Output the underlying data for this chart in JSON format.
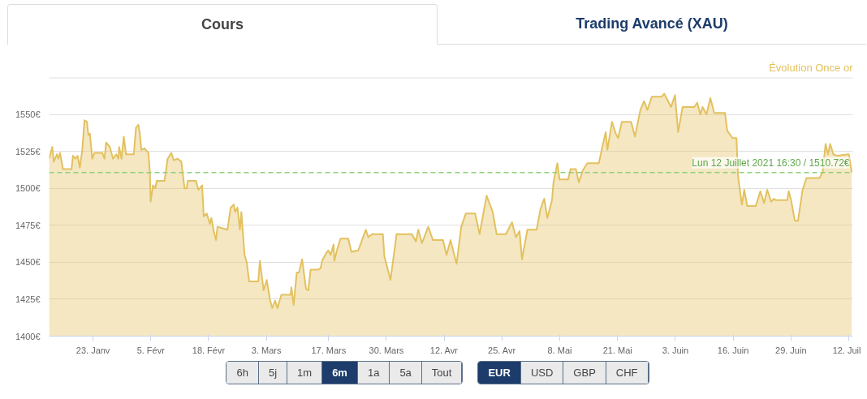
{
  "chart_data": {
    "type": "area",
    "title": "Évolution Once or",
    "annotations": [
      "Cours",
      "Trading Avancé (XAU)",
      "6h",
      "5j",
      "1m",
      "6m",
      "1a",
      "5a",
      "Tout",
      "EUR",
      "USD",
      "GBP",
      "CHF"
    ],
    "xlim": [
      "2021-01-13T03:00",
      "2021-07-12T22:00"
    ],
    "xticks": [
      {
        "value": "2021-01-23",
        "label": "23. Janv"
      },
      {
        "value": "2021-02-05",
        "label": "5. Févr"
      },
      {
        "value": "2021-02-18",
        "label": "18. Févr"
      },
      {
        "value": "2021-03-03",
        "label": "3. Mars"
      },
      {
        "value": "2021-03-17",
        "label": "17. Mars"
      },
      {
        "value": "2021-03-30",
        "label": "30. Mars"
      },
      {
        "value": "2021-04-12",
        "label": "12. Avr"
      },
      {
        "value": "2021-04-25",
        "label": "25. Avr"
      },
      {
        "value": "2021-05-08",
        "label": "8. Mai"
      },
      {
        "value": "2021-05-21",
        "label": "21. Mai"
      },
      {
        "value": "2021-06-03",
        "label": "3. Juin"
      },
      {
        "value": "2021-06-16",
        "label": "16. Juin"
      },
      {
        "value": "2021-06-29",
        "label": "29. Juin"
      },
      {
        "value": "2021-07-12",
        "label": "12. Juil"
      }
    ],
    "ylim": [
      1400,
      1575
    ],
    "yticks": [
      {
        "value": 1400,
        "label": "1400€"
      },
      {
        "value": 1425,
        "label": "1425€"
      },
      {
        "value": 1450,
        "label": "1450€"
      },
      {
        "value": 1475,
        "label": "1475€"
      },
      {
        "value": 1500,
        "label": "1500€"
      },
      {
        "value": 1525,
        "label": "1525€"
      },
      {
        "value": 1550,
        "label": "1550€"
      },
      {
        "value": 1575,
        "label": null
      }
    ],
    "grid": "y",
    "ref_lines": [
      {
        "axis": "y",
        "value": 1510.72,
        "label": "Lun 12 Juillet 2021 16:30 / 1510.72€",
        "color": "#8fd07a",
        "line_style": "dashed"
      }
    ],
    "series": [
      {
        "color": "#e3c15f",
        "x": [
          "2021-01-13T03:00",
          "2021-01-13T20:00",
          "2021-01-14T04:00",
          "2021-01-14T21:00",
          "2021-01-15T05:00",
          "2021-01-15T14:00",
          "2021-01-16T06:00",
          "2021-01-18T04:00",
          "2021-01-18T12:00",
          "2021-01-19T01:00",
          "2021-01-19T13:00",
          "2021-01-20T01:00",
          "2021-01-20T14:00",
          "2021-01-21T02:00",
          "2021-01-21T15:00",
          "2021-01-21T23:00",
          "2021-01-22T07:00",
          "2021-01-22T20:00",
          "2021-01-23T08:00",
          "2021-01-25T02:00",
          "2021-01-25T14:00",
          "2021-01-25T23:00",
          "2021-01-26T19:00",
          "2021-01-27T12:00",
          "2021-01-28T05:00",
          "2021-01-28T17:00",
          "2021-01-28T21:00",
          "2021-01-29T10:00",
          "2021-01-29T22:00",
          "2021-01-30T10:00",
          "2021-02-01T04:00",
          "2021-02-01T16:00",
          "2021-02-02T05:00",
          "2021-02-02T13:00",
          "2021-02-02T21:00",
          "2021-02-03T14:00",
          "2021-02-04T11:00",
          "2021-02-04T19:00",
          "2021-02-04T23:00",
          "2021-02-05T12:00",
          "2021-02-06T00:00",
          "2021-02-06T08:00",
          "2021-02-08T02:00",
          "2021-02-08T19:00",
          "2021-02-09T15:00",
          "2021-02-10T04:00",
          "2021-02-11T01:00",
          "2021-02-11T21:00",
          "2021-02-12T14:00",
          "2021-02-13T02:00",
          "2021-02-13T07:00",
          "2021-02-15T04:00",
          "2021-02-15T17:00",
          "2021-02-16T13:00",
          "2021-02-16T22:00",
          "2021-02-17T14:00",
          "2021-02-18T07:00",
          "2021-02-18T15:00",
          "2021-02-19T04:00",
          "2021-02-19T16:00",
          "2021-02-20T00:00",
          "2021-02-22T06:00",
          "2021-02-22T23:00",
          "2021-02-23T16:00",
          "2021-02-23T23:00",
          "2021-02-24T12:00",
          "2021-02-25T01:00",
          "2021-02-25T09:00",
          "2021-02-26T02:00",
          "2021-02-26T14:00",
          "2021-02-27T03:00",
          "2021-03-01T04:00",
          "2021-03-01T13:00",
          "2021-03-02T09:00",
          "2021-03-03T02:00",
          "2021-03-03T19:00",
          "2021-03-04T07:00",
          "2021-03-04T23:00",
          "2021-03-05T12:00",
          "2021-03-06T09:00",
          "2021-03-08T11:00",
          "2021-03-08T15:00",
          "2021-03-09T03:00",
          "2021-03-09T20:00",
          "2021-03-10T08:00",
          "2021-03-11T01:00",
          "2021-03-11T22:00",
          "2021-03-12T10:00",
          "2021-03-12T23:00",
          "2021-03-14T16:00",
          "2021-03-15T05:00",
          "2021-03-15T13:00",
          "2021-03-16T10:00",
          "2021-03-16T22:00",
          "2021-03-17T11:00",
          "2021-03-18T03:00",
          "2021-03-18T07:00",
          "2021-03-18T23:00",
          "2021-03-19T16:00",
          "2021-03-21T10:00",
          "2021-03-22T03:00",
          "2021-03-23T16:00",
          "2021-03-24T21:00",
          "2021-03-25T09:00",
          "2021-03-25T22:00",
          "2021-03-26T19:00",
          "2021-03-29T05:00",
          "2021-03-29T13:00",
          "2021-03-30T06:00",
          "2021-03-30T22:00",
          "2021-04-01T07:00",
          "2021-04-04T18:00",
          "2021-04-05T15:00",
          "2021-04-06T04:00",
          "2021-04-07T00:00",
          "2021-04-08T10:00",
          "2021-04-09T11:00",
          "2021-04-11T17:00",
          "2021-04-12T13:00",
          "2021-04-13T10:00",
          "2021-04-14T19:00",
          "2021-04-15T20:00",
          "2021-04-16T21:00",
          "2021-04-18T23:00",
          "2021-04-19T23:00",
          "2021-04-21T13:00",
          "2021-04-22T22:00",
          "2021-04-23T19:00",
          "2021-04-25T21:00",
          "2021-04-27T06:00",
          "2021-04-28T03:00",
          "2021-04-28T23:00",
          "2021-04-29T12:00",
          "2021-04-30T17:00",
          "2021-05-02T19:00",
          "2021-05-03T16:00",
          "2021-05-04T12:00",
          "2021-05-05T05:00",
          "2021-05-06T06:00",
          "2021-05-06T14:00",
          "2021-05-07T11:00",
          "2021-05-07T23:00",
          "2021-05-09T21:00",
          "2021-05-10T10:00",
          "2021-05-11T15:00",
          "2021-05-12T07:00",
          "2021-05-13T04:00",
          "2021-05-14T05:00",
          "2021-05-16T19:00",
          "2021-05-17T12:00",
          "2021-05-18T08:00",
          "2021-05-18T17:00",
          "2021-05-19T18:00",
          "2021-05-20T14:00",
          "2021-05-21T03:00",
          "2021-05-21T23:00",
          "2021-05-24T01:00",
          "2021-05-24T22:00",
          "2021-05-26T03:00",
          "2021-05-26T23:00",
          "2021-05-27T17:00",
          "2021-05-28T17:00",
          "2021-05-30T23:00",
          "2021-05-31T12:00",
          "2021-06-01T09:00",
          "2021-06-02T01:00",
          "2021-06-02T22:00",
          "2021-06-03T15:00",
          "2021-06-04T15:00",
          "2021-06-07T06:00",
          "2021-06-07T22:00",
          "2021-06-08T15:00",
          "2021-06-09T03:00",
          "2021-06-10T00:00",
          "2021-06-10T21:00",
          "2021-06-11T18:00",
          "2021-06-14T04:00",
          "2021-06-14T16:00",
          "2021-06-15T21:00",
          "2021-06-16T18:00",
          "2021-06-17T02:00",
          "2021-06-17T23:00",
          "2021-06-18T12:00",
          "2021-06-19T04:00",
          "2021-06-21T02:00",
          "2021-06-22T03:00",
          "2021-06-22T23:00",
          "2021-06-23T16:00",
          "2021-06-24T13:00",
          "2021-06-25T05:00",
          "2021-06-25T14:00",
          "2021-06-28T04:00",
          "2021-06-28T12:00",
          "2021-06-29T01:00",
          "2021-06-29T21:00",
          "2021-06-30T14:00",
          "2021-07-01T15:00",
          "2021-07-02T12:00",
          "2021-07-05T10:00",
          "2021-07-06T03:00",
          "2021-07-06T19:00",
          "2021-07-07T08:00",
          "2021-07-07T20:00",
          "2021-07-08T13:00",
          "2021-07-09T10:00",
          "2021-07-12T00:00",
          "2021-07-12T16:30"
        ],
        "values": [
          1520,
          1528,
          1518,
          1523,
          1520,
          1524,
          1513,
          1513,
          1522,
          1520,
          1522,
          1514,
          1526,
          1546,
          1545,
          1536,
          1537,
          1520,
          1524,
          1524,
          1520,
          1531,
          1528,
          1520,
          1523,
          1520,
          1528,
          1520,
          1535,
          1523,
          1523,
          1541,
          1543,
          1537,
          1526,
          1527,
          1524,
          1511,
          1491,
          1502,
          1500,
          1505,
          1505,
          1520,
          1524,
          1519,
          1520,
          1518,
          1500,
          1500,
          1505,
          1505,
          1499,
          1502,
          1481,
          1483,
          1476,
          1480,
          1471,
          1465,
          1474,
          1472,
          1487,
          1489,
          1484,
          1487,
          1472,
          1484,
          1455,
          1450,
          1437,
          1437,
          1451,
          1431,
          1438,
          1425,
          1419,
          1424,
          1419,
          1428,
          1428,
          1433,
          1421,
          1443,
          1443,
          1452,
          1432,
          1431,
          1445,
          1445,
          1446,
          1451,
          1456,
          1458,
          1455,
          1462,
          1451,
          1459,
          1466,
          1466,
          1457,
          1458,
          1468,
          1472,
          1467,
          1469,
          1469,
          1454,
          1446,
          1438,
          1469,
          1469,
          1464,
          1472,
          1463,
          1474,
          1465,
          1465,
          1455,
          1465,
          1449,
          1474,
          1483,
          1483,
          1469,
          1495,
          1484,
          1469,
          1469,
          1477,
          1467,
          1471,
          1452,
          1472,
          1472,
          1486,
          1493,
          1480,
          1492,
          1504,
          1517,
          1506,
          1506,
          1513,
          1513,
          1504,
          1512,
          1517,
          1517,
          1527,
          1538,
          1526,
          1545,
          1537,
          1534,
          1545,
          1545,
          1535,
          1553,
          1559,
          1553,
          1562,
          1562,
          1564,
          1559,
          1555,
          1563,
          1538,
          1555,
          1555,
          1558,
          1550,
          1555,
          1550,
          1561,
          1551,
          1551,
          1539,
          1534,
          1534,
          1509,
          1489,
          1499,
          1488,
          1488,
          1498,
          1490,
          1499,
          1491,
          1493,
          1492,
          1492,
          1498,
          1492,
          1478,
          1478,
          1499,
          1507,
          1507,
          1511,
          1530,
          1523,
          1530,
          1523,
          1522,
          1523,
          1510.72
        ]
      }
    ]
  }
}
